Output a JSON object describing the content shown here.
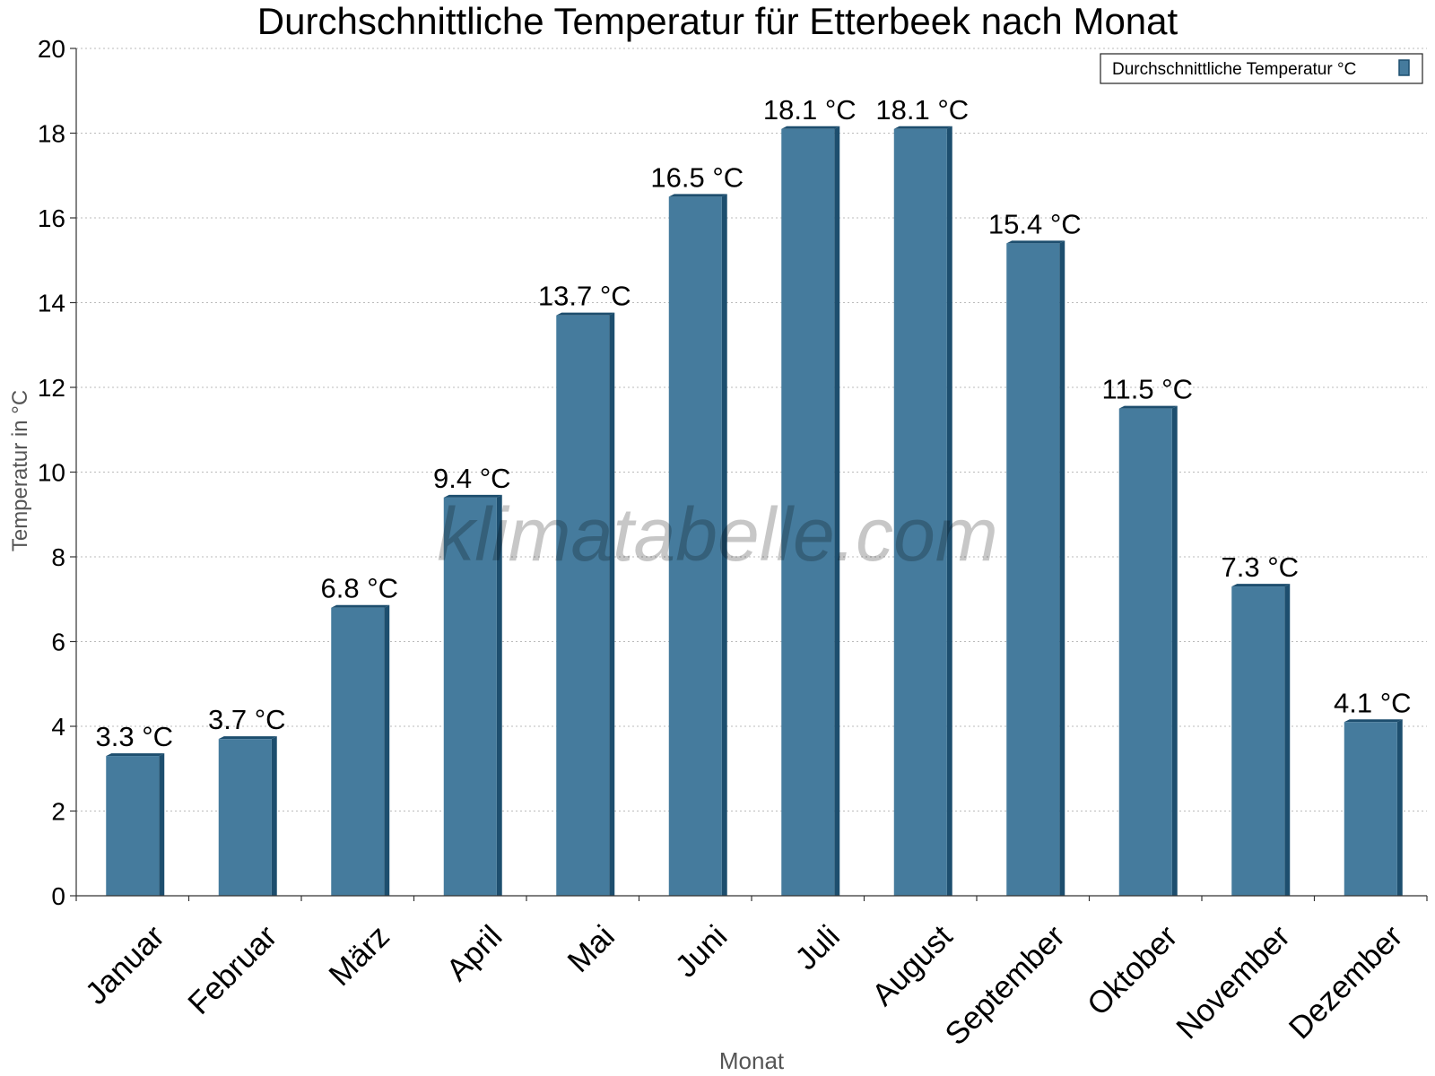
{
  "chart_data": {
    "type": "bar",
    "title": "Durchschnittliche Temperatur für Etterbeek nach Monat",
    "xlabel": "Monat",
    "ylabel": "Temperatur in °C",
    "categories": [
      "Januar",
      "Februar",
      "März",
      "April",
      "Mai",
      "Juni",
      "Juli",
      "August",
      "September",
      "Oktober",
      "November",
      "Dezember"
    ],
    "series": [
      {
        "name": "Durchschnittliche Temperatur °C",
        "values": [
          3.3,
          3.7,
          6.8,
          9.4,
          13.7,
          16.5,
          18.1,
          18.1,
          15.4,
          11.5,
          7.3,
          4.1
        ],
        "labels": [
          "3.3 °C",
          "3.7 °C",
          "6.8 °C",
          "9.4 °C",
          "13.7 °C",
          "16.5 °C",
          "18.1 °C",
          "18.1 °C",
          "15.4 °C",
          "11.5 °C",
          "7.3 °C",
          "4.1 °C"
        ],
        "color": "#457b9d"
      }
    ],
    "ylim": [
      0,
      20
    ],
    "yticks": [
      "0",
      "2",
      "4",
      "6",
      "8",
      "10",
      "12",
      "14",
      "16",
      "18",
      "20"
    ],
    "grid": true,
    "legend_position": "top-right"
  },
  "watermark": "klimatabelle.com",
  "colors": {
    "bar": "#457b9d",
    "bar_shadow": "#1d4e6e",
    "grid": "#bbbbbb",
    "axis": "#333333",
    "axis_title": "#555555"
  }
}
